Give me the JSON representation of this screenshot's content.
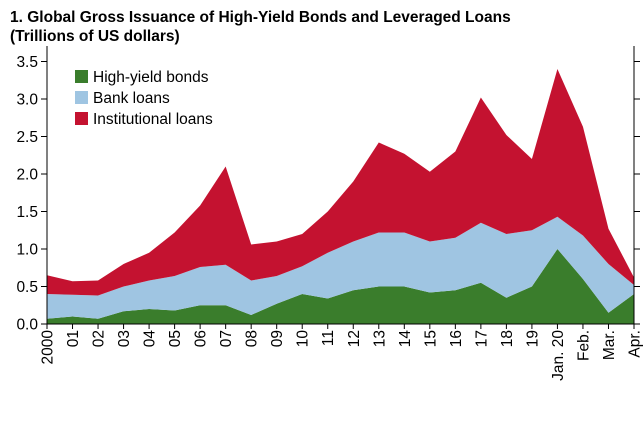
{
  "chart_data": {
    "type": "area",
    "stacked": true,
    "title": "1. Global Gross Issuance of High-Yield Bonds and Leveraged Loans",
    "subtitle": "(Trillions of US dollars)",
    "xlabel": "",
    "ylabel": "",
    "ylim": [
      0,
      3.6
    ],
    "yticks": [
      "0.0",
      "0.5",
      "1.0",
      "1.5",
      "2.0",
      "2.5",
      "3.0",
      "3.5"
    ],
    "grid": false,
    "legend_position": "top-left",
    "categories": [
      "2000",
      "01",
      "02",
      "03",
      "04",
      "05",
      "06",
      "07",
      "08",
      "09",
      "10",
      "11",
      "12",
      "13",
      "14",
      "15",
      "16",
      "17",
      "18",
      "19",
      "Jan. 20",
      "Feb.",
      "Mar.",
      "Apr."
    ],
    "series": [
      {
        "name": "High-yield bonds",
        "color": "#3a7d2c",
        "values": [
          0.07,
          0.1,
          0.07,
          0.17,
          0.2,
          0.18,
          0.25,
          0.25,
          0.12,
          0.27,
          0.4,
          0.34,
          0.45,
          0.5,
          0.5,
          0.42,
          0.45,
          0.55,
          0.35,
          0.5,
          1.0,
          0.6,
          0.15,
          0.4
        ]
      },
      {
        "name": "Bank loans",
        "color": "#9fc5e2",
        "values": [
          0.33,
          0.29,
          0.31,
          0.33,
          0.38,
          0.46,
          0.51,
          0.54,
          0.46,
          0.37,
          0.37,
          0.61,
          0.65,
          0.72,
          0.72,
          0.68,
          0.7,
          0.8,
          0.85,
          0.75,
          0.43,
          0.58,
          0.65,
          0.12
        ]
      },
      {
        "name": "Institutional loans",
        "color": "#c41230",
        "values": [
          0.25,
          0.18,
          0.2,
          0.3,
          0.37,
          0.58,
          0.82,
          1.31,
          0.48,
          0.46,
          0.43,
          0.55,
          0.8,
          1.2,
          1.05,
          0.93,
          1.15,
          1.67,
          1.32,
          0.95,
          1.97,
          1.45,
          0.47,
          0.1
        ]
      }
    ]
  }
}
